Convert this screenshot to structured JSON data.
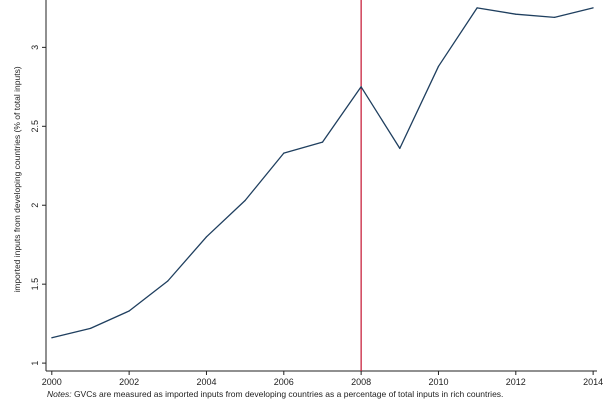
{
  "chart_data": {
    "type": "line",
    "ylabel": "imported inputs from developing countries (% of total inputs)",
    "xlabel": "",
    "x": [
      2000,
      2001,
      2002,
      2003,
      2004,
      2005,
      2006,
      2007,
      2008,
      2009,
      2010,
      2011,
      2012,
      2013,
      2014
    ],
    "series": [
      {
        "values": [
          1.16,
          1.22,
          1.33,
          1.52,
          1.8,
          2.03,
          2.33,
          2.4,
          2.75,
          2.36,
          2.88,
          3.25,
          3.21,
          3.19,
          3.25
        ]
      }
    ],
    "x_ticks": [
      2000,
      2002,
      2004,
      2006,
      2008,
      2010,
      2012,
      2014
    ],
    "x_tick_labels": [
      "2000",
      "2002",
      "2004",
      "2006",
      "2008",
      "2010",
      "2012",
      "2014"
    ],
    "y_ticks": [
      1,
      1.5,
      2,
      2.5,
      3
    ],
    "y_tick_labels": [
      "1",
      "1.5",
      "2",
      "2.5",
      "3"
    ],
    "xlim": [
      1999.85,
      2014.1
    ],
    "ylim": [
      0.95,
      3.3
    ],
    "reference_line": {
      "x": 2008,
      "color": "#c4122f"
    },
    "line_color": "#1f3f5f",
    "grid": false,
    "legend": "none"
  },
  "note": {
    "label": "Notes:",
    "text": " GVCs are measured as imported inputs from developing countries as a percentage of total inputs in rich countries."
  }
}
